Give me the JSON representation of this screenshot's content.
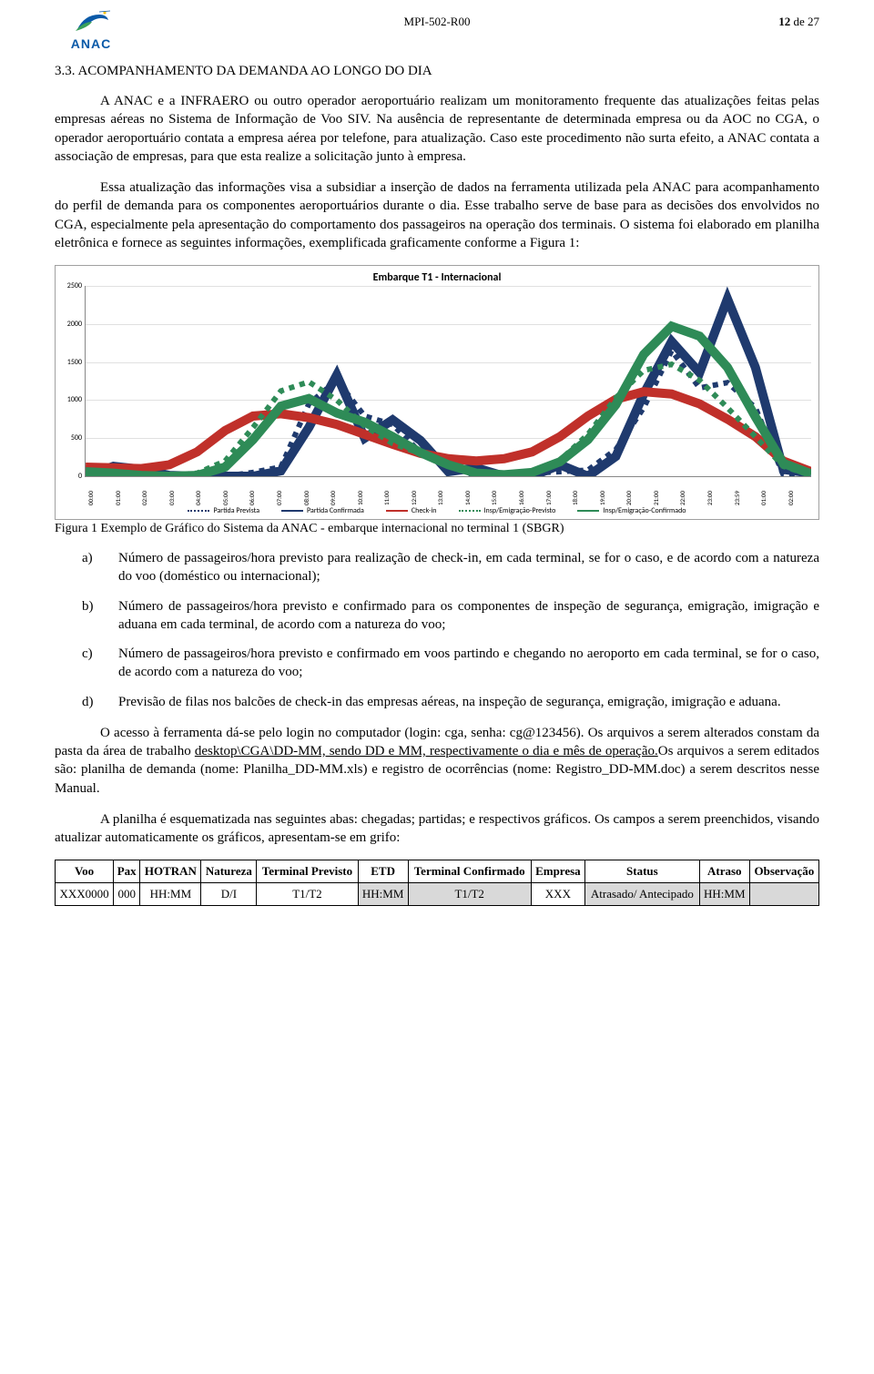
{
  "header": {
    "doc_code": "MPI-502-R00",
    "page_of": "12 de 27",
    "page_bold": "12",
    "logo_text": "ANAC",
    "logo_colors": {
      "blue": "#0b5aa8",
      "green": "#3aa05a",
      "yellow": "#f2c21a"
    }
  },
  "section": {
    "number": "3.3.",
    "title": "ACOMPANHAMENTO DA DEMANDA AO LONGO DO DIA"
  },
  "paragraphs": {
    "p1": "A ANAC e a INFRAERO ou outro operador aeroportuário realizam um monitoramento frequente das atualizações feitas pelas empresas aéreas no Sistema de Informação de Voo SIV. Na ausência de representante de determinada empresa ou da AOC no CGA, o operador aeroportuário contata a empresa aérea por telefone, para atualização. Caso este procedimento não surta efeito, a ANAC contata a associação de empresas, para que esta realize a solicitação junto à empresa.",
    "p2": "Essa atualização das informações visa a subsidiar a inserção de dados na ferramenta utilizada pela ANAC para acompanhamento do perfil de demanda para os componentes aeroportuários durante o dia. Esse trabalho serve de base para as decisões dos envolvidos no CGA, especialmente pela apresentação do comportamento dos passageiros na operação dos terminais. O sistema foi elaborado em planilha eletrônica e fornece as seguintes informações, exemplificada graficamente conforme a Figura 1:",
    "p3a": "O acesso à ferramenta dá-se pelo login no computador (login: cga, senha: cg@123456). Os arquivos a serem alterados constam da pasta da área de trabalho ",
    "p3b_underline": "desktop\\CGA\\DD-MM, sendo DD e MM, respectivamente o dia e mês de operação.",
    "p3c": "Os arquivos a serem editados são: planilha de demanda (nome: Planilha_DD-MM.xls) e registro de ocorrências (nome: Registro_DD-MM.doc) a serem descritos nesse Manual.",
    "p4": "A planilha é esquematizada nas seguintes abas: chegadas; partidas; e respectivos gráficos. Os campos a serem preenchidos, visando atualizar automaticamente os gráficos, apresentam-se em grifo:"
  },
  "chart": {
    "title": "Embarque T1 - Internacional",
    "type": "line",
    "ylim": [
      0,
      2500
    ],
    "ytick_step": 500,
    "y_ticks": [
      "0",
      "500",
      "1000",
      "1500",
      "2000",
      "2500"
    ],
    "x_labels": [
      "00:00",
      "01:00",
      "02:00",
      "03:00",
      "04:00",
      "05:00",
      "06:00",
      "07:00",
      "08:00",
      "09:00",
      "10:00",
      "11:00",
      "12:00",
      "13:00",
      "14:00",
      "15:00",
      "16:00",
      "17:00",
      "18:00",
      "19:00",
      "20:00",
      "21:00",
      "22:00",
      "23:00",
      "23:59",
      "01:00",
      "02:00"
    ],
    "background_color": "#ffffff",
    "grid_color": "#e0e0e0",
    "series": [
      {
        "name": "Partida Prevista",
        "color": "#1f3a6e",
        "dash": "2,2",
        "width": 1.2,
        "values": [
          0,
          50,
          0,
          0,
          30,
          0,
          50,
          120,
          950,
          1260,
          790,
          680,
          310,
          150,
          0,
          0,
          40,
          60,
          80,
          350,
          900,
          1650,
          1160,
          1230,
          900,
          20,
          0
        ]
      },
      {
        "name": "Partida Confirmada",
        "color": "#1f3a6e",
        "dash": "none",
        "width": 2,
        "values": [
          0,
          130,
          90,
          10,
          0,
          0,
          0,
          70,
          640,
          1330,
          500,
          740,
          470,
          60,
          110,
          0,
          0,
          150,
          0,
          260,
          1080,
          1770,
          1360,
          2330,
          1430,
          90,
          40
        ]
      },
      {
        "name": "Check-in",
        "color": "#c0302a",
        "dash": "none",
        "width": 2,
        "values": [
          120,
          110,
          100,
          150,
          320,
          600,
          790,
          820,
          770,
          680,
          550,
          420,
          300,
          230,
          200,
          230,
          320,
          520,
          790,
          1010,
          1110,
          1080,
          950,
          750,
          520,
          200,
          60
        ]
      },
      {
        "name": "Insp/Emigração-Previsto",
        "color": "#2e8b57",
        "dash": "2,2",
        "width": 1.2,
        "values": [
          30,
          20,
          10,
          10,
          40,
          200,
          640,
          1120,
          1240,
          1000,
          660,
          430,
          300,
          170,
          60,
          30,
          60,
          210,
          550,
          1030,
          1390,
          1470,
          1260,
          900,
          520,
          130,
          10
        ]
      },
      {
        "name": "Insp/Emigração-Confirmado",
        "color": "#2e8b57",
        "dash": "none",
        "width": 2,
        "values": [
          60,
          40,
          10,
          0,
          10,
          120,
          480,
          920,
          1020,
          830,
          710,
          520,
          310,
          150,
          40,
          20,
          50,
          190,
          480,
          940,
          1600,
          1970,
          1840,
          1430,
          780,
          170,
          30
        ]
      }
    ],
    "legend_fontsize": 8
  },
  "figure_caption": "Figura 1 Exemplo de Gráfico do Sistema da ANAC - embarque internacional no terminal 1 (SBGR)",
  "list_items": {
    "a": "Número de passageiros/hora previsto para realização de check-in, em cada terminal, se for o caso, e de acordo com a natureza do voo (doméstico ou internacional);",
    "b": "Número de passageiros/hora previsto e confirmado para os componentes de inspeção de segurança, emigração, imigração e aduana em cada terminal, de acordo com a natureza do voo;",
    "c": "Número de passageiros/hora previsto e confirmado em voos partindo e chegando no aeroporto em cada terminal, se for o caso, de acordo com a natureza do voo;",
    "d": "Previsão de filas nos balcões de check-in das empresas aéreas, na inspeção de segurança, emigração, imigração e aduana."
  },
  "data_table": {
    "headers": [
      "Voo",
      "Pax",
      "HOTRAN",
      "Natureza",
      "Terminal Previsto",
      "ETD",
      "Terminal Confirmado",
      "Empresa",
      "Status",
      "Atraso",
      "Observação"
    ],
    "row": {
      "voo": "XXX0000",
      "pax": "000",
      "hotran": "HH:MM",
      "natureza": "D/I",
      "terminal_prev": "T1/T2",
      "etd": "HH:MM",
      "terminal_conf": "T1/T2",
      "empresa": "XXX",
      "status": "Atrasado/ Antecipado",
      "atraso": "HH:MM",
      "obs": ""
    },
    "shaded_cols": [
      5,
      6,
      8,
      9,
      10
    ]
  }
}
